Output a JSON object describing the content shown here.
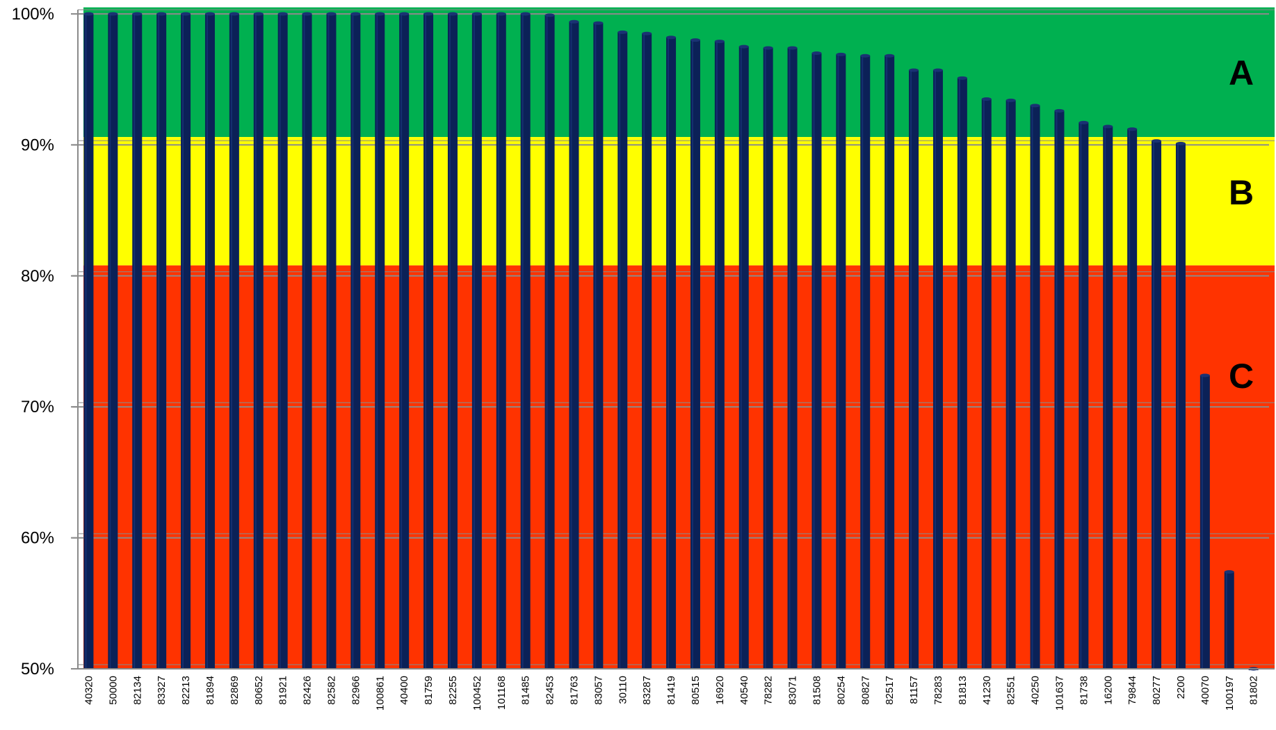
{
  "chart_data": {
    "type": "bar",
    "title": "",
    "xlabel": "",
    "ylabel": "",
    "ylim": [
      50,
      100
    ],
    "y_ticks": [
      "50%",
      "60%",
      "70%",
      "80%",
      "90%",
      "100%"
    ],
    "y_tick_values": [
      50,
      60,
      70,
      80,
      90,
      100
    ],
    "grid": true,
    "bar_color": "#0b2157",
    "zones": [
      {
        "label": "A",
        "from": 90.6,
        "to": 100.5,
        "color": "#00b050"
      },
      {
        "label": "B",
        "from": 80.8,
        "to": 90.6,
        "color": "#ffff00"
      },
      {
        "label": "C",
        "from": 50,
        "to": 80.8,
        "color": "#ff3300"
      }
    ],
    "categories": [
      "40320",
      "50000",
      "82134",
      "83327",
      "82213",
      "81894",
      "82869",
      "80652",
      "81921",
      "82426",
      "82582",
      "82966",
      "100861",
      "40400",
      "81759",
      "82255",
      "100452",
      "101168",
      "81485",
      "82453",
      "81763",
      "83057",
      "30110",
      "83287",
      "81419",
      "80515",
      "16920",
      "40540",
      "78282",
      "83071",
      "81508",
      "80254",
      "80827",
      "82517",
      "81157",
      "78283",
      "81813",
      "41230",
      "82551",
      "40250",
      "101637",
      "81738",
      "16200",
      "79844",
      "80277",
      "2200",
      "40070",
      "100197",
      "81802"
    ],
    "values": [
      100,
      100,
      100,
      100,
      100,
      100,
      100,
      100,
      100,
      100,
      100,
      100,
      100,
      100,
      100,
      100,
      100,
      100,
      100,
      99.9,
      99.4,
      99.3,
      98.6,
      98.5,
      98.2,
      98.0,
      97.9,
      97.5,
      97.4,
      97.4,
      97.0,
      96.9,
      96.8,
      96.8,
      95.7,
      95.7,
      95.1,
      93.5,
      93.4,
      93.0,
      92.6,
      91.7,
      91.4,
      91.2,
      90.3,
      90.1,
      72.4,
      57.4,
      50.0
    ]
  }
}
